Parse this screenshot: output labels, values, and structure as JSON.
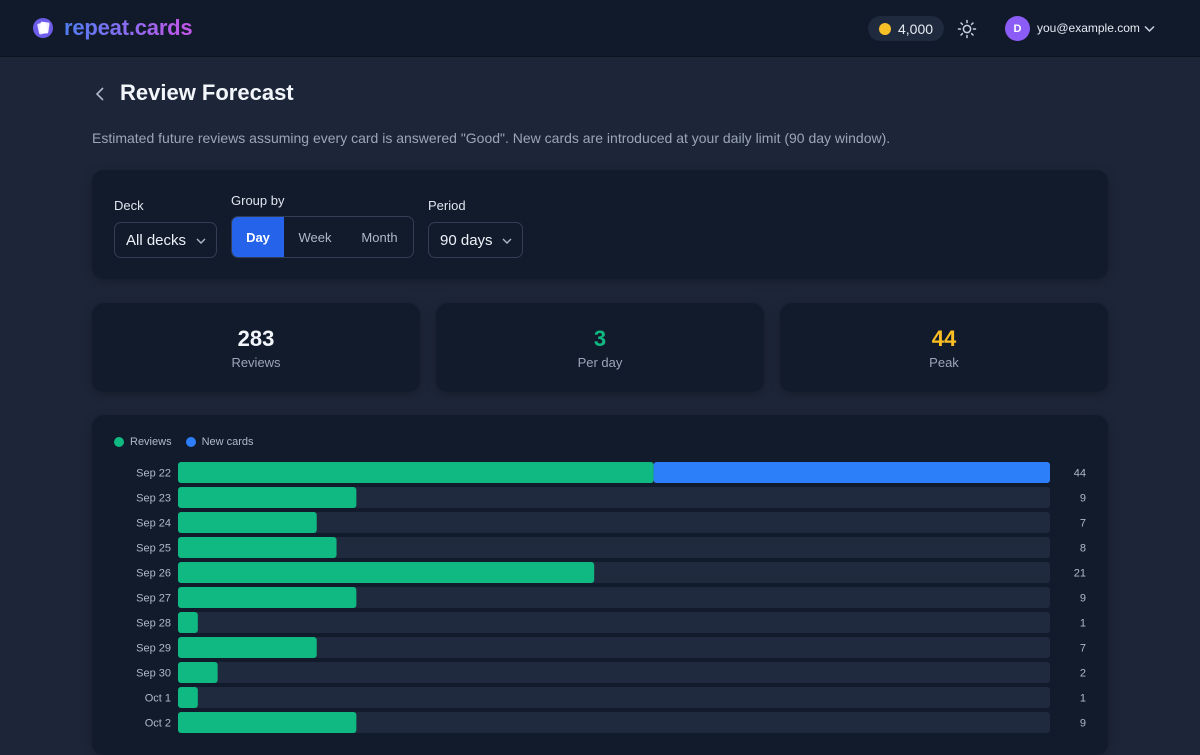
{
  "app": {
    "brand": "repeat.cards",
    "coins": "4,000",
    "user_initial": "D",
    "user_email": "you@example.com"
  },
  "page": {
    "title": "Review Forecast",
    "description": "Estimated future reviews assuming every card is answered \"Good\". New cards are introduced at your daily limit (90 day window)."
  },
  "filters": {
    "deck_label": "Deck",
    "deck_value": "All decks",
    "group_label": "Group by",
    "group_options": [
      "Day",
      "Week",
      "Month"
    ],
    "group_selected": "Day",
    "period_label": "Period",
    "period_value": "90 days"
  },
  "stats": [
    {
      "value": "283",
      "label": "Reviews",
      "color": "#f3f6fb"
    },
    {
      "value": "3",
      "label": "Per day",
      "color": "#10b981"
    },
    {
      "value": "44",
      "label": "Peak",
      "color": "#fbbf24"
    }
  ],
  "colors": {
    "reviews": "#10b981",
    "new_cards": "#2d7ff9",
    "track": "#1f2a3e",
    "accent": "#2563eb"
  },
  "chart_data": {
    "type": "bar",
    "orientation": "horizontal",
    "stacked": true,
    "categories": [
      "Sep 22",
      "Sep 23",
      "Sep 24",
      "Sep 25",
      "Sep 26",
      "Sep 27",
      "Sep 28",
      "Sep 29",
      "Sep 30",
      "Oct 1",
      "Oct 2"
    ],
    "series": [
      {
        "name": "Reviews",
        "values": [
          24,
          9,
          7,
          8,
          21,
          9,
          1,
          7,
          2,
          1,
          9
        ]
      },
      {
        "name": "New cards",
        "values": [
          20,
          0,
          0,
          0,
          0,
          0,
          0,
          0,
          0,
          0,
          0
        ]
      }
    ],
    "totals": [
      44,
      9,
      7,
      8,
      21,
      9,
      1,
      7,
      2,
      1,
      9
    ],
    "xlim": [
      0,
      44
    ],
    "legend_position": "top-left",
    "grid": false
  }
}
